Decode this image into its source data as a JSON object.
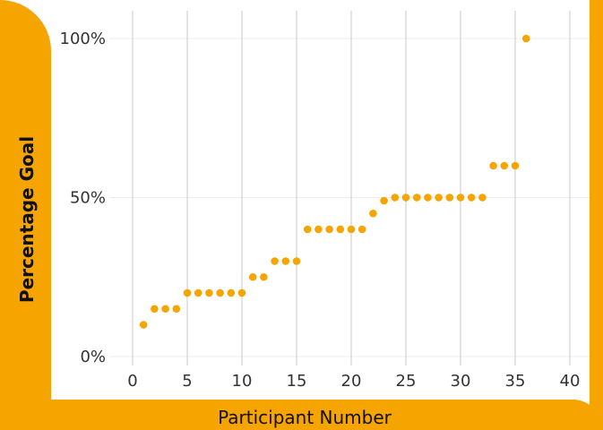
{
  "chart_data": {
    "type": "scatter",
    "xlabel": "Participant Number",
    "ylabel": "Percentage Goal",
    "xlim": [
      0,
      40
    ],
    "ylim": [
      0,
      100
    ],
    "x_ticks": [
      "0",
      "5",
      "10",
      "15",
      "20",
      "25",
      "30",
      "35",
      "40"
    ],
    "y_ticks": [
      "0%",
      "50%",
      "100%"
    ],
    "grid": "vertical lines at x ticks, faint horizontal lines at y ticks",
    "point_color": "#f6a400",
    "x": [
      1,
      2,
      3,
      4,
      5,
      6,
      7,
      8,
      9,
      10,
      11,
      12,
      13,
      14,
      15,
      16,
      17,
      18,
      19,
      20,
      21,
      22,
      23,
      24,
      25,
      26,
      27,
      28,
      29,
      30,
      31,
      32,
      33,
      34,
      35,
      36
    ],
    "y": [
      10,
      15,
      15,
      15,
      20,
      20,
      20,
      20,
      20,
      20,
      25,
      25,
      30,
      30,
      30,
      40,
      40,
      40,
      40,
      40,
      40,
      45,
      49,
      50,
      50,
      50,
      50,
      50,
      50,
      50,
      50,
      50,
      60,
      60,
      60,
      100
    ]
  },
  "colors": {
    "frame": "#f6a400",
    "grid": "#c8c8c8"
  }
}
